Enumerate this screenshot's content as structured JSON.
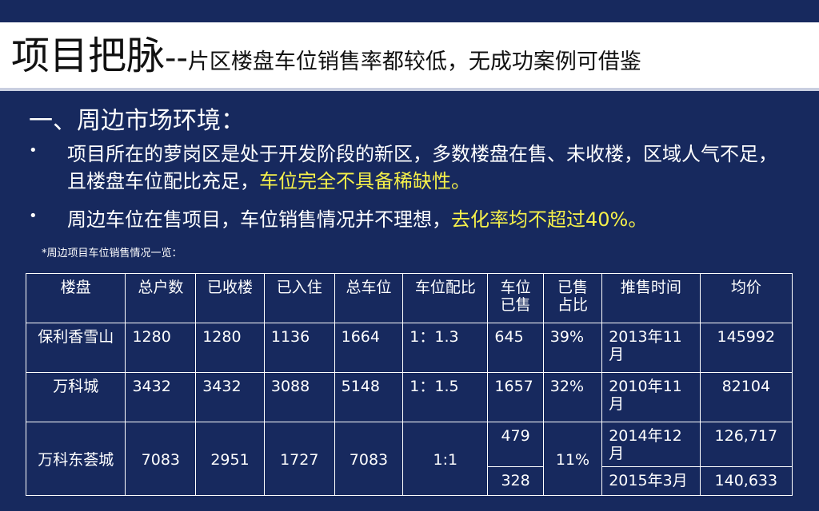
{
  "title": {
    "main": "项目把脉",
    "separator": "--",
    "subtitle": "片区楼盘车位销售率都较低，无成功案例可借鉴"
  },
  "section_heading": "一、周边市场环境：",
  "bullets": [
    {
      "text": "项目所在的萝岗区是处于开发阶段的新区，多数楼盘在售、未收楼，区域人气不足，且楼盘车位配比充足，",
      "highlight": "车位完全不具备稀缺性。"
    },
    {
      "text": "周边车位在售项目，车位销售情况并不理想，",
      "highlight": "去化率均不超过40%。"
    }
  ],
  "bullet_symbol": "•",
  "table_note": "*周边项目车位销售情况一览：",
  "table": {
    "headers": [
      "楼盘",
      "总户数",
      "已收楼",
      "已入住",
      "总车位",
      "车位配比",
      "车位已售",
      "已售占比",
      "推售时间",
      "均价"
    ],
    "rows": [
      [
        "保利香雪山",
        "1280",
        "1280",
        "1136",
        "1664",
        "1：1.3",
        "645",
        "39%",
        "2013年11月",
        "145992"
      ],
      [
        "万科城",
        "3432",
        "3432",
        "3088",
        "5148",
        "1：1.5",
        "1657",
        "32%",
        "2010年11月",
        "82104"
      ]
    ],
    "last_row": {
      "project": "万科东荟城",
      "households": "7083",
      "received": "2951",
      "occupied": "1727",
      "total_spaces": "7083",
      "ratio": "1:1",
      "sold_a": "479",
      "sold_b": "328",
      "sold_pct": "11%",
      "time_a": "2014年12月",
      "time_b": "2015年3月",
      "price_a": "126,717",
      "price_b": "140,633"
    }
  },
  "colors": {
    "background": "#17295e",
    "highlight": "#f5f04a",
    "title_bar": "#ffffff"
  }
}
